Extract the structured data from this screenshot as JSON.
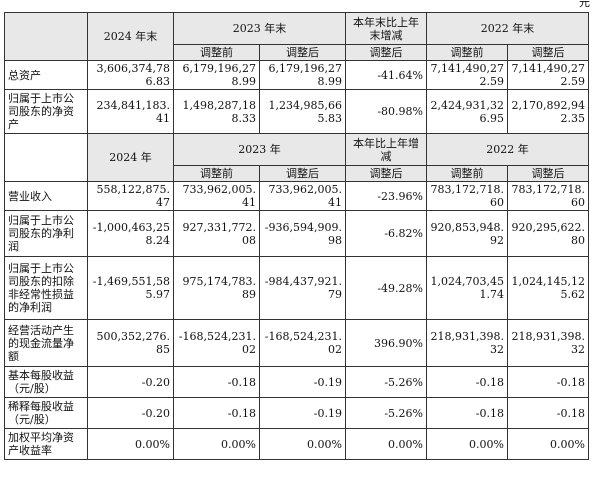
{
  "unit": "元",
  "table1": {
    "headers": {
      "year_cur": "2024 年末",
      "year_prev": "2023 年末",
      "change": "本年末比上年末增减",
      "year_prev2": "2022 年末",
      "before_adj": "调整前",
      "after_adj": "调整后"
    },
    "rows": [
      {
        "label": "总资产",
        "cur": "3,606,374,786.83",
        "prev_before": "6,179,196,278.99",
        "prev_after": "6,179,196,278.99",
        "change": "-41.64%",
        "prev2_before": "7,141,490,272.59",
        "prev2_after": "7,141,490,272.59"
      },
      {
        "label": "归属于上市公司股东的净资产",
        "cur": "234,841,183.41",
        "prev_before": "1,498,287,188.33",
        "prev_after": "1,234,985,665.83",
        "change": "-80.98%",
        "prev2_before": "2,424,931,326.95",
        "prev2_after": "2,170,892,942.35"
      }
    ]
  },
  "table2": {
    "headers": {
      "year_cur": "2024 年",
      "year_prev": "2023 年",
      "change": "本年比上年增减",
      "year_prev2": "2022 年",
      "before_adj": "调整前",
      "after_adj": "调整后"
    },
    "rows": [
      {
        "label": "营业收入",
        "cur": "558,122,875.47",
        "prev_before": "733,962,005.41",
        "prev_after": "733,962,005.41",
        "change": "-23.96%",
        "prev2_before": "783,172,718.60",
        "prev2_after": "783,172,718.60"
      },
      {
        "label": "归属于上市公司股东的净利润",
        "cur": "-1,000,463,258.24",
        "prev_before": "927,331,772.08",
        "prev_after": "-936,594,909.98",
        "change": "-6.82%",
        "prev2_before": "920,853,948.92",
        "prev2_after": "920,295,622.80"
      },
      {
        "label": "归属于上市公司股东的扣除非经常性损益的净利润",
        "cur": "-1,469,551,585.97",
        "prev_before": "975,174,783.89",
        "prev_after": "-984,437,921.79",
        "change": "-49.28%",
        "prev2_before": "1,024,703,451.74",
        "prev2_after": "1,024,145,125.62"
      },
      {
        "label": "经营活动产生的现金流量净额",
        "cur": "500,352,276.85",
        "prev_before": "-168,524,231.02",
        "prev_after": "-168,524,231.02",
        "change": "396.90%",
        "prev2_before": "218,931,398.32",
        "prev2_after": "218,931,398.32"
      },
      {
        "label": "基本每股收益（元/股）",
        "cur": "-0.20",
        "prev_before": "-0.18",
        "prev_after": "-0.19",
        "change": "-5.26%",
        "prev2_before": "-0.18",
        "prev2_after": "-0.18"
      },
      {
        "label": "稀释每股收益（元/股）",
        "cur": "-0.20",
        "prev_before": "-0.18",
        "prev_after": "-0.19",
        "change": "-5.26%",
        "prev2_before": "-0.18",
        "prev2_after": "-0.18"
      },
      {
        "label": "加权平均净资产收益率",
        "cur": "0.00%",
        "prev_before": "0.00%",
        "prev_after": "0.00%",
        "change": "0.00%",
        "prev2_before": "0.00%",
        "prev2_after": "0.00%"
      }
    ]
  }
}
